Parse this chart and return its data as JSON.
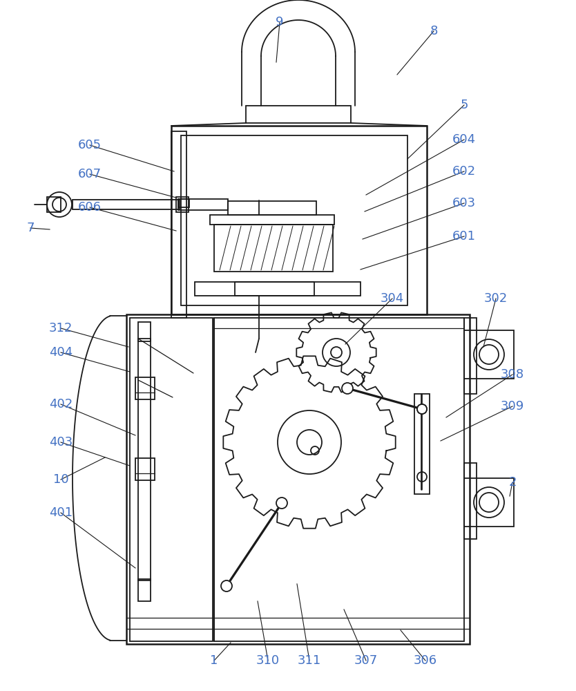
{
  "bg_color": "#ffffff",
  "line_color": "#1a1a1a",
  "label_color": "#4472c4",
  "lw_main": 1.8,
  "lw_inner": 1.3,
  "lw_thin": 0.9,
  "annotations": [
    [
      "9",
      405,
      968,
      400,
      910
    ],
    [
      "8",
      628,
      955,
      575,
      892
    ],
    [
      "5",
      672,
      848,
      590,
      770
    ],
    [
      "604",
      672,
      798,
      530,
      718
    ],
    [
      "602",
      672,
      752,
      528,
      694
    ],
    [
      "603",
      672,
      706,
      525,
      654
    ],
    [
      "601",
      672,
      658,
      522,
      610
    ],
    [
      "605",
      130,
      790,
      252,
      752
    ],
    [
      "607",
      130,
      748,
      255,
      714
    ],
    [
      "7",
      44,
      670,
      72,
      668
    ],
    [
      "606",
      130,
      700,
      255,
      666
    ],
    [
      "304",
      568,
      568,
      500,
      502
    ],
    [
      "302",
      718,
      568,
      700,
      498
    ],
    [
      "312",
      88,
      525,
      186,
      498
    ],
    [
      "404",
      88,
      490,
      188,
      462
    ],
    [
      "402",
      88,
      415,
      196,
      370
    ],
    [
      "403",
      88,
      360,
      188,
      326
    ],
    [
      "10",
      88,
      306,
      152,
      338
    ],
    [
      "401",
      88,
      258,
      196,
      178
    ],
    [
      "308",
      742,
      458,
      646,
      396
    ],
    [
      "309",
      742,
      412,
      638,
      362
    ],
    [
      "2",
      742,
      302,
      738,
      282
    ],
    [
      "1",
      310,
      44,
      334,
      70
    ],
    [
      "310",
      388,
      44,
      373,
      130
    ],
    [
      "311",
      448,
      44,
      430,
      155
    ],
    [
      "307",
      530,
      44,
      498,
      118
    ],
    [
      "306",
      616,
      44,
      580,
      88
    ]
  ]
}
